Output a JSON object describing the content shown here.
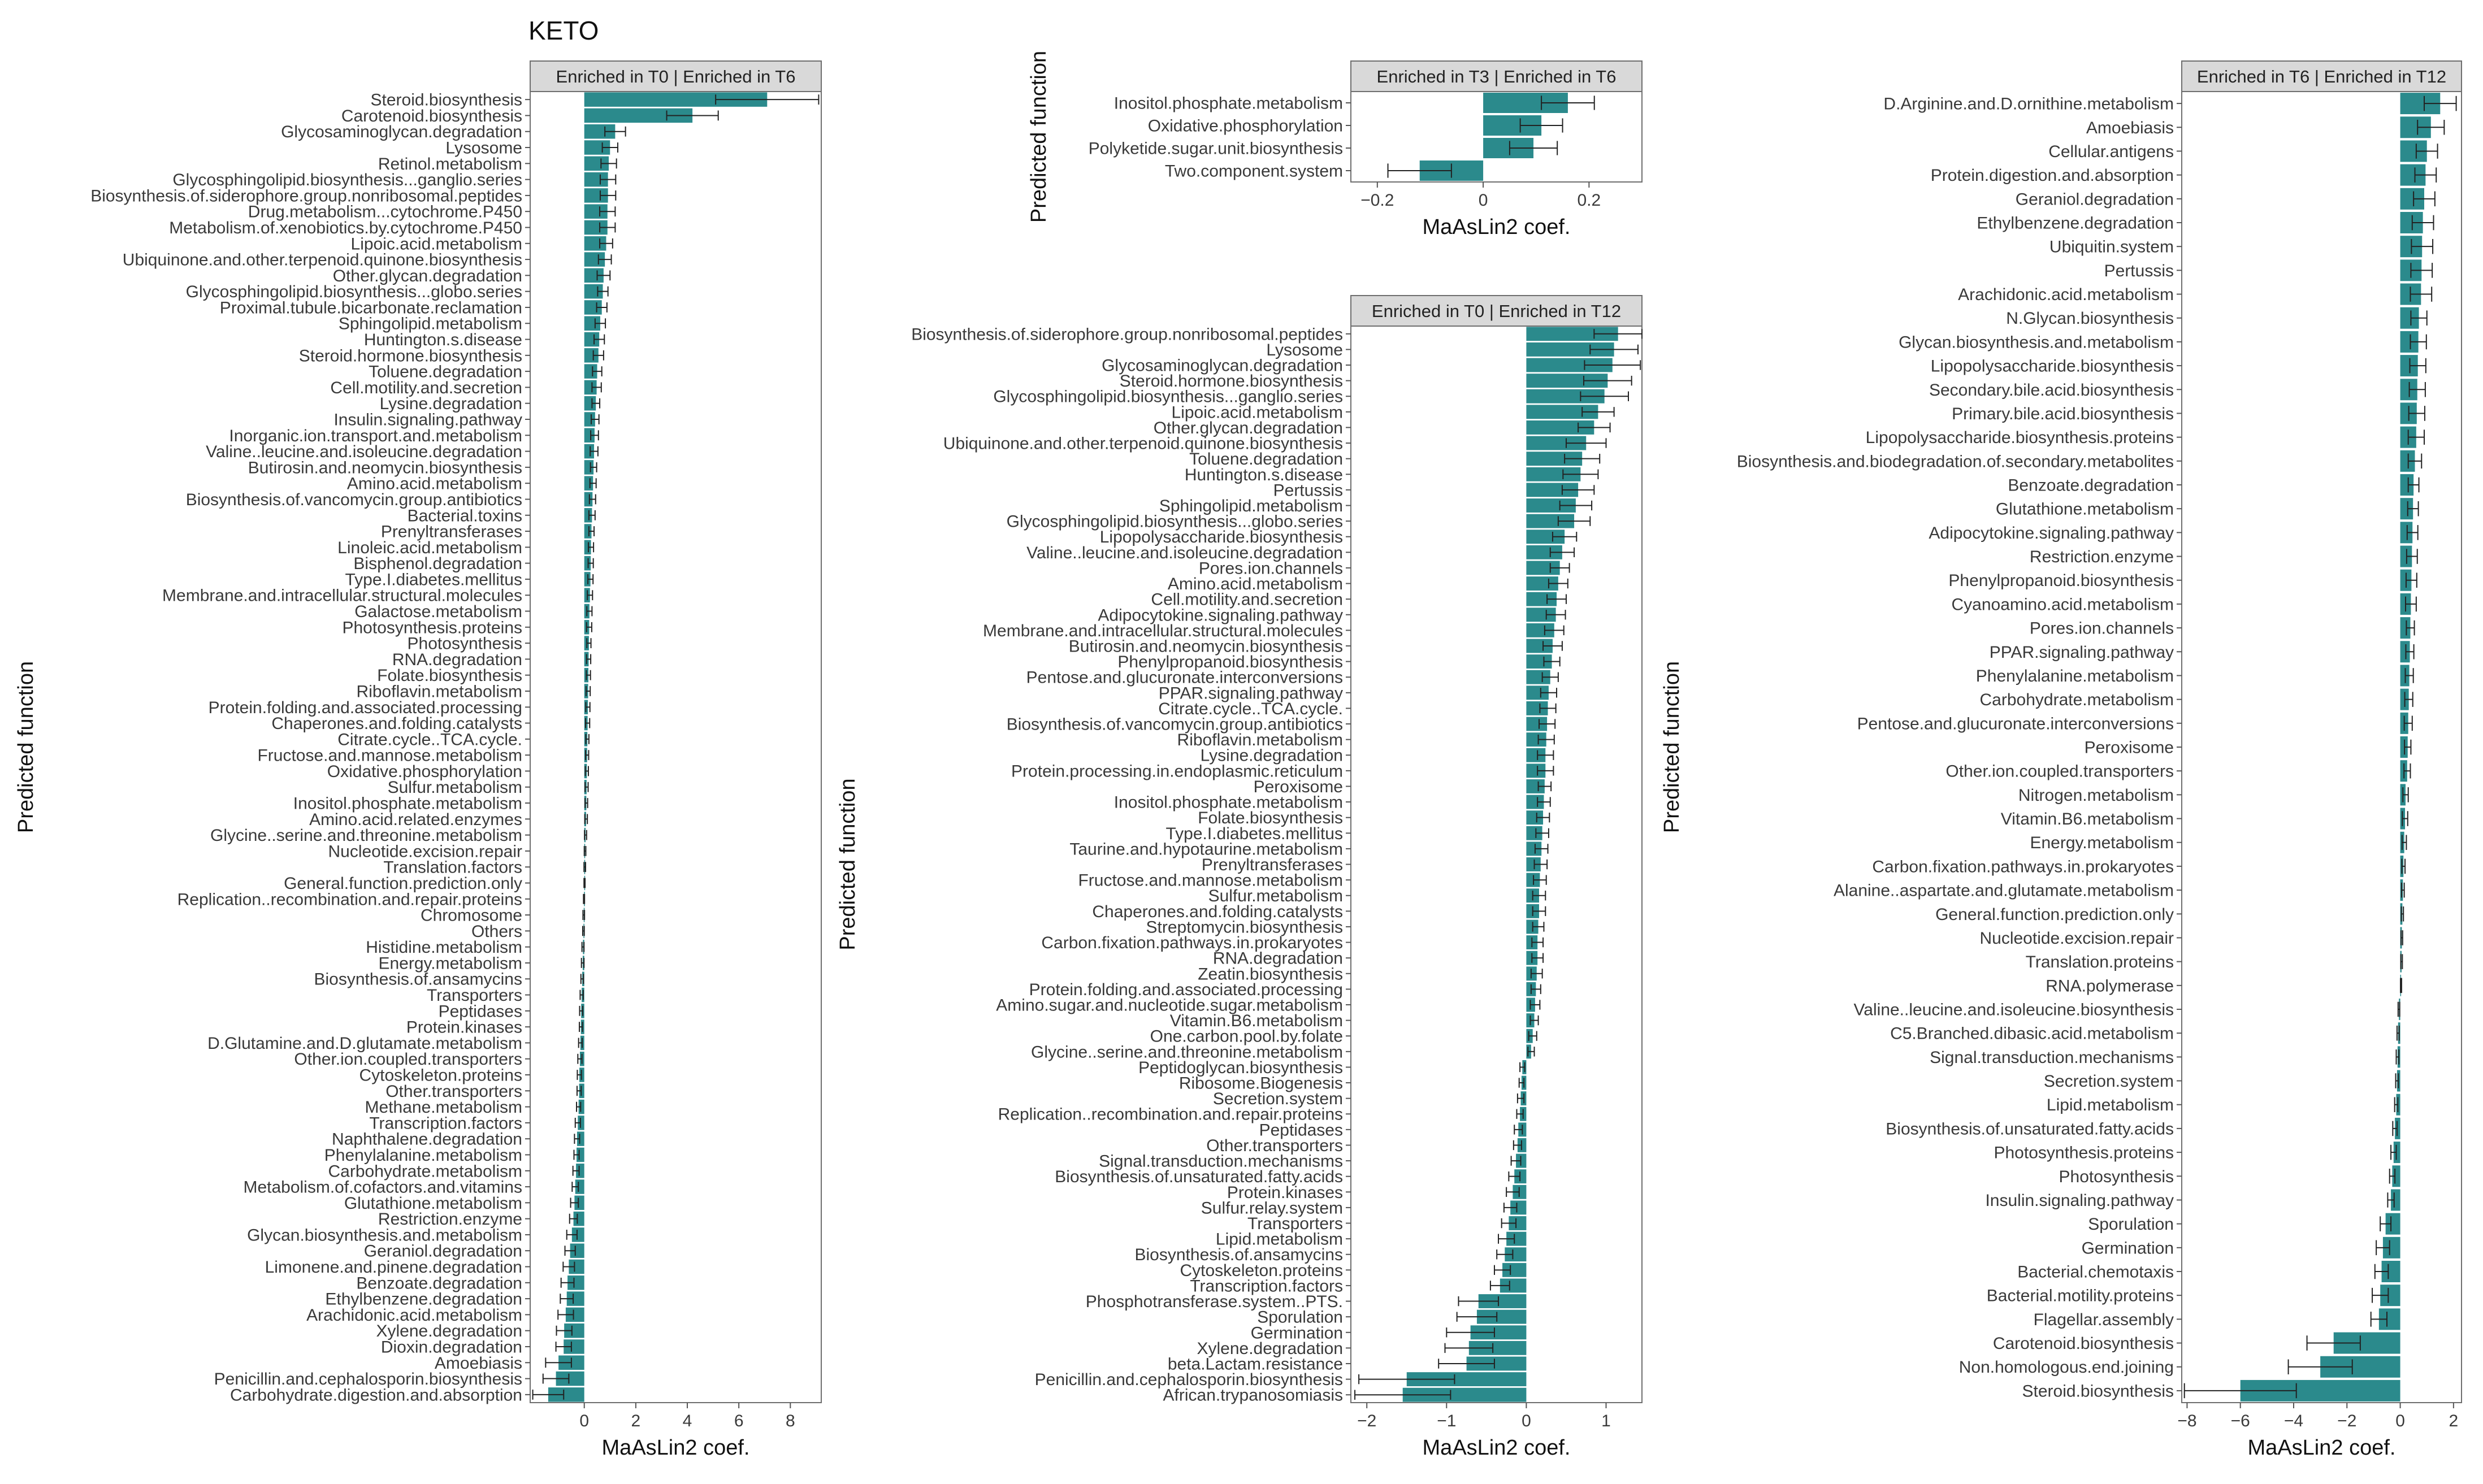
{
  "figure_title": "KETO",
  "colors": {
    "bar": "#2b8a8c",
    "axis": "#555555",
    "strip_fill": "#d9d9d9",
    "panel_border": "#6e6e6e"
  },
  "chart_data": [
    {
      "type": "bar",
      "orientation": "horizontal",
      "strip": "Enriched in T0 | Enriched in T6",
      "xlabel": "MaAsLin2 coef.",
      "ylabel": "Predicted function",
      "xlim": [
        -2.1,
        9.2
      ],
      "xticks": [
        0,
        2,
        4,
        6,
        8
      ],
      "categories": [
        "Steroid.biosynthesis",
        "Carotenoid.biosynthesis",
        "Glycosaminoglycan.degradation",
        "Lysosome",
        "Retinol.metabolism",
        "Glycosphingolipid.biosynthesis...ganglio.series",
        "Biosynthesis.of.siderophore.group.nonribosomal.peptides",
        "Drug.metabolism...cytochrome.P450",
        "Metabolism.of.xenobiotics.by.cytochrome.P450",
        "Lipoic.acid.metabolism",
        "Ubiquinone.and.other.terpenoid.quinone.biosynthesis",
        "Other.glycan.degradation",
        "Glycosphingolipid.biosynthesis...globo.series",
        "Proximal.tubule.bicarbonate.reclamation",
        "Sphingolipid.metabolism",
        "Huntington.s.disease",
        "Steroid.hormone.biosynthesis",
        "Toluene.degradation",
        "Cell.motility.and.secretion",
        "Lysine.degradation",
        "Insulin.signaling.pathway",
        "Inorganic.ion.transport.and.metabolism",
        "Valine..leucine.and.isoleucine.degradation",
        "Butirosin.and.neomycin.biosynthesis",
        "Amino.acid.metabolism",
        "Biosynthesis.of.vancomycin.group.antibiotics",
        "Bacterial.toxins",
        "Prenyltransferases",
        "Linoleic.acid.metabolism",
        "Bisphenol.degradation",
        "Type.I.diabetes.mellitus",
        "Membrane.and.intracellular.structural.molecules",
        "Galactose.metabolism",
        "Photosynthesis.proteins",
        "Photosynthesis",
        "RNA.degradation",
        "Folate.biosynthesis",
        "Riboflavin.metabolism",
        "Protein.folding.and.associated.processing",
        "Chaperones.and.folding.catalysts",
        "Citrate.cycle..TCA.cycle.",
        "Fructose.and.mannose.metabolism",
        "Oxidative.phosphorylation",
        "Sulfur.metabolism",
        "Inositol.phosphate.metabolism",
        "Amino.acid.related.enzymes",
        "Glycine..serine.and.threonine.metabolism",
        "Nucleotide.excision.repair",
        "Translation.factors",
        "General.function.prediction.only",
        "Replication..recombination.and.repair.proteins",
        "Chromosome",
        "Others",
        "Histidine.metabolism",
        "Energy.metabolism",
        "Biosynthesis.of.ansamycins",
        "Transporters",
        "Peptidases",
        "Protein.kinases",
        "D.Glutamine.and.D.glutamate.metabolism",
        "Other.ion.coupled.transporters",
        "Cytoskeleton.proteins",
        "Other.transporters",
        "Methane.metabolism",
        "Transcription.factors",
        "Naphthalene.degradation",
        "Phenylalanine.metabolism",
        "Carbohydrate.metabolism",
        "Metabolism.of.cofactors.and.vitamins",
        "Glutathione.metabolism",
        "Restriction.enzyme",
        "Glycan.biosynthesis.and.metabolism",
        "Geraniol.degradation",
        "Limonene.and.pinene.degradation",
        "Benzoate.degradation",
        "Ethylbenzene.degradation",
        "Arachidonic.acid.metabolism",
        "Xylene.degradation",
        "Dioxin.degradation",
        "Amoebiasis",
        "Penicillin.and.cephalosporin.biosynthesis",
        "Carbohydrate.digestion.and.absorption"
      ],
      "values": [
        7.1,
        4.2,
        1.2,
        1.0,
        0.95,
        0.92,
        0.92,
        0.9,
        0.9,
        0.85,
        0.8,
        0.75,
        0.72,
        0.68,
        0.62,
        0.58,
        0.55,
        0.5,
        0.48,
        0.45,
        0.42,
        0.4,
        0.38,
        0.36,
        0.34,
        0.32,
        0.3,
        0.28,
        0.26,
        0.25,
        0.24,
        0.22,
        0.2,
        0.19,
        0.18,
        0.17,
        0.16,
        0.15,
        0.14,
        0.13,
        0.12,
        0.11,
        0.1,
        0.09,
        0.08,
        0.07,
        0.05,
        0.03,
        0.02,
        0.01,
        -0.01,
        -0.02,
        -0.03,
        -0.05,
        -0.06,
        -0.08,
        -0.1,
        -0.12,
        -0.13,
        -0.15,
        -0.17,
        -0.19,
        -0.2,
        -0.22,
        -0.25,
        -0.28,
        -0.3,
        -0.32,
        -0.35,
        -0.38,
        -0.42,
        -0.48,
        -0.55,
        -0.6,
        -0.65,
        -0.68,
        -0.72,
        -0.78,
        -0.8,
        -1.0,
        -1.1,
        -1.4
      ],
      "errors": [
        2.0,
        1.0,
        0.4,
        0.3,
        0.3,
        0.3,
        0.3,
        0.3,
        0.3,
        0.25,
        0.25,
        0.25,
        0.2,
        0.2,
        0.2,
        0.2,
        0.2,
        0.18,
        0.18,
        0.15,
        0.15,
        0.15,
        0.15,
        0.12,
        0.12,
        0.12,
        0.12,
        0.1,
        0.1,
        0.1,
        0.1,
        0.1,
        0.1,
        0.1,
        0.08,
        0.08,
        0.08,
        0.08,
        0.08,
        0.08,
        0.06,
        0.06,
        0.06,
        0.06,
        0.05,
        0.05,
        0.04,
        0.03,
        0.03,
        0.02,
        0.02,
        0.03,
        0.03,
        0.04,
        0.05,
        0.05,
        0.06,
        0.06,
        0.06,
        0.07,
        0.08,
        0.08,
        0.08,
        0.08,
        0.1,
        0.1,
        0.1,
        0.12,
        0.12,
        0.15,
        0.15,
        0.2,
        0.2,
        0.22,
        0.25,
        0.25,
        0.3,
        0.3,
        0.3,
        0.5,
        0.5,
        0.6
      ]
    },
    {
      "type": "bar",
      "orientation": "horizontal",
      "strip": "Enriched in T3 | Enriched in T6",
      "xlabel": "MaAsLin2 coef.",
      "ylabel": "Predicted function",
      "xlim": [
        -0.25,
        0.3
      ],
      "xticks": [
        -0.2,
        0.0,
        0.2
      ],
      "categories": [
        "Inositol.phosphate.metabolism",
        "Oxidative.phosphorylation",
        "Polyketide.sugar.unit.biosynthesis",
        "Two.component.system"
      ],
      "values": [
        0.16,
        0.11,
        0.095,
        -0.12
      ],
      "errors": [
        0.05,
        0.04,
        0.045,
        0.06
      ]
    },
    {
      "type": "bar",
      "orientation": "horizontal",
      "strip": "Enriched in T0 | Enriched in T12",
      "xlabel": "MaAsLin2 coef.",
      "ylabel": "Predicted function",
      "xlim": [
        -2.2,
        1.45
      ],
      "xticks": [
        -2,
        -1,
        0,
        1
      ],
      "categories": [
        "Biosynthesis.of.siderophore.group.nonribosomal.peptides",
        "Lysosome",
        "Glycosaminoglycan.degradation",
        "Steroid.hormone.biosynthesis",
        "Glycosphingolipid.biosynthesis...ganglio.series",
        "Lipoic.acid.metabolism",
        "Other.glycan.degradation",
        "Ubiquinone.and.other.terpenoid.quinone.biosynthesis",
        "Toluene.degradation",
        "Huntington.s.disease",
        "Pertussis",
        "Sphingolipid.metabolism",
        "Glycosphingolipid.biosynthesis...globo.series",
        "Lipopolysaccharide.biosynthesis",
        "Valine..leucine.and.isoleucine.degradation",
        "Pores.ion.channels",
        "Amino.acid.metabolism",
        "Cell.motility.and.secretion",
        "Adipocytokine.signaling.pathway",
        "Membrane.and.intracellular.structural.molecules",
        "Butirosin.and.neomycin.biosynthesis",
        "Phenylpropanoid.biosynthesis",
        "Pentose.and.glucuronate.interconversions",
        "PPAR.signaling.pathway",
        "Citrate.cycle..TCA.cycle.",
        "Biosynthesis.of.vancomycin.group.antibiotics",
        "Riboflavin.metabolism",
        "Lysine.degradation",
        "Protein.processing.in.endoplasmic.reticulum",
        "Peroxisome",
        "Inositol.phosphate.metabolism",
        "Folate.biosynthesis",
        "Type.I.diabetes.mellitus",
        "Taurine.and.hypotaurine.metabolism",
        "Prenyltransferases",
        "Fructose.and.mannose.metabolism",
        "Sulfur.metabolism",
        "Chaperones.and.folding.catalysts",
        "Streptomycin.biosynthesis",
        "Carbon.fixation.pathways.in.prokaryotes",
        "RNA.degradation",
        "Zeatin.biosynthesis",
        "Protein.folding.and.associated.processing",
        "Amino.sugar.and.nucleotide.sugar.metabolism",
        "Vitamin.B6.metabolism",
        "One.carbon.pool.by.folate",
        "Glycine..serine.and.threonine.metabolism",
        "Peptidoglycan.biosynthesis",
        "Ribosome.Biogenesis",
        "Secretion.system",
        "Replication..recombination.and.repair.proteins",
        "Peptidases",
        "Other.transporters",
        "Signal.transduction.mechanisms",
        "Biosynthesis.of.unsaturated.fatty.acids",
        "Protein.kinases",
        "Sulfur.relay.system",
        "Transporters",
        "Lipid.metabolism",
        "Biosynthesis.of.ansamycins",
        "Cytoskeleton.proteins",
        "Transcription.factors",
        "Phosphotransferase.system..PTS.",
        "Sporulation",
        "Germination",
        "Xylene.degradation",
        "beta.Lactam.resistance",
        "Penicillin.and.cephalosporin.biosynthesis",
        "African.trypanosomiasis"
      ],
      "values": [
        1.15,
        1.1,
        1.08,
        1.02,
        0.98,
        0.9,
        0.85,
        0.75,
        0.7,
        0.68,
        0.65,
        0.62,
        0.6,
        0.48,
        0.45,
        0.42,
        0.4,
        0.38,
        0.37,
        0.35,
        0.33,
        0.32,
        0.3,
        0.28,
        0.27,
        0.26,
        0.25,
        0.24,
        0.24,
        0.23,
        0.22,
        0.21,
        0.2,
        0.19,
        0.18,
        0.17,
        0.16,
        0.16,
        0.15,
        0.14,
        0.14,
        0.13,
        0.12,
        0.11,
        0.1,
        0.08,
        0.06,
        -0.05,
        -0.06,
        -0.07,
        -0.08,
        -0.1,
        -0.11,
        -0.13,
        -0.15,
        -0.17,
        -0.2,
        -0.22,
        -0.25,
        -0.27,
        -0.3,
        -0.33,
        -0.6,
        -0.62,
        -0.7,
        -0.72,
        -0.75,
        -1.5,
        -1.55
      ],
      "errors": [
        0.3,
        0.3,
        0.35,
        0.3,
        0.3,
        0.2,
        0.2,
        0.25,
        0.22,
        0.22,
        0.2,
        0.2,
        0.2,
        0.15,
        0.15,
        0.12,
        0.12,
        0.12,
        0.12,
        0.12,
        0.12,
        0.1,
        0.1,
        0.1,
        0.1,
        0.1,
        0.1,
        0.1,
        0.1,
        0.08,
        0.08,
        0.08,
        0.08,
        0.08,
        0.08,
        0.08,
        0.08,
        0.08,
        0.07,
        0.07,
        0.07,
        0.07,
        0.06,
        0.06,
        0.05,
        0.05,
        0.04,
        0.03,
        0.03,
        0.04,
        0.04,
        0.05,
        0.05,
        0.06,
        0.07,
        0.08,
        0.08,
        0.09,
        0.1,
        0.1,
        0.1,
        0.12,
        0.25,
        0.25,
        0.3,
        0.3,
        0.35,
        0.6,
        0.6
      ]
    },
    {
      "type": "bar",
      "orientation": "horizontal",
      "strip": "Enriched in T6 | Enriched in T12",
      "xlabel": "MaAsLin2 coef.",
      "ylabel": "Predicted function",
      "xlim": [
        -8.2,
        2.3
      ],
      "xticks": [
        -8,
        -6,
        -4,
        -2,
        0,
        2
      ],
      "categories": [
        "D.Arginine.and.D.ornithine.metabolism",
        "Amoebiasis",
        "Cellular.antigens",
        "Protein.digestion.and.absorption",
        "Geraniol.degradation",
        "Ethylbenzene.degradation",
        "Ubiquitin.system",
        "Pertussis",
        "Arachidonic.acid.metabolism",
        "N.Glycan.biosynthesis",
        "Glycan.biosynthesis.and.metabolism",
        "Lipopolysaccharide.biosynthesis",
        "Secondary.bile.acid.biosynthesis",
        "Primary.bile.acid.biosynthesis",
        "Lipopolysaccharide.biosynthesis.proteins",
        "Biosynthesis.and.biodegradation.of.secondary.metabolites",
        "Benzoate.degradation",
        "Glutathione.metabolism",
        "Adipocytokine.signaling.pathway",
        "Restriction.enzyme",
        "Phenylpropanoid.biosynthesis",
        "Cyanoamino.acid.metabolism",
        "Pores.ion.channels",
        "PPAR.signaling.pathway",
        "Phenylalanine.metabolism",
        "Carbohydrate.metabolism",
        "Pentose.and.glucuronate.interconversions",
        "Peroxisome",
        "Other.ion.coupled.transporters",
        "Nitrogen.metabolism",
        "Vitamin.B6.metabolism",
        "Energy.metabolism",
        "Carbon.fixation.pathways.in.prokaryotes",
        "Alanine..aspartate.and.glutamate.metabolism",
        "General.function.prediction.only",
        "Nucleotide.excision.repair",
        "Translation.proteins",
        "RNA.polymerase",
        "Valine..leucine.and.isoleucine.biosynthesis",
        "C5.Branched.dibasic.acid.metabolism",
        "Signal.transduction.mechanisms",
        "Secretion.system",
        "Lipid.metabolism",
        "Biosynthesis.of.unsaturated.fatty.acids",
        "Photosynthesis.proteins",
        "Photosynthesis",
        "Insulin.signaling.pathway",
        "Sporulation",
        "Germination",
        "Bacterial.chemotaxis",
        "Bacterial.motility.proteins",
        "Flagellar.assembly",
        "Carotenoid.biosynthesis",
        "Non.homologous.end.joining",
        "Steroid.biosynthesis"
      ],
      "values": [
        1.5,
        1.15,
        1.0,
        0.95,
        0.9,
        0.85,
        0.82,
        0.8,
        0.78,
        0.7,
        0.68,
        0.66,
        0.64,
        0.62,
        0.6,
        0.55,
        0.5,
        0.48,
        0.46,
        0.44,
        0.42,
        0.4,
        0.38,
        0.36,
        0.34,
        0.32,
        0.3,
        0.28,
        0.26,
        0.2,
        0.18,
        0.15,
        0.12,
        0.1,
        0.08,
        0.06,
        0.05,
        0.03,
        -0.05,
        -0.08,
        -0.1,
        -0.12,
        -0.15,
        -0.2,
        -0.25,
        -0.3,
        -0.35,
        -0.55,
        -0.65,
        -0.7,
        -0.75,
        -0.8,
        -2.5,
        -3.0,
        -6.0
      ],
      "errors": [
        0.6,
        0.5,
        0.4,
        0.4,
        0.4,
        0.4,
        0.4,
        0.4,
        0.4,
        0.3,
        0.3,
        0.3,
        0.3,
        0.3,
        0.3,
        0.25,
        0.2,
        0.2,
        0.2,
        0.2,
        0.2,
        0.2,
        0.15,
        0.15,
        0.15,
        0.15,
        0.15,
        0.12,
        0.12,
        0.1,
        0.1,
        0.08,
        0.06,
        0.05,
        0.04,
        0.03,
        0.03,
        0.02,
        0.03,
        0.04,
        0.05,
        0.05,
        0.06,
        0.08,
        0.1,
        0.1,
        0.12,
        0.2,
        0.25,
        0.25,
        0.3,
        0.3,
        1.0,
        1.2,
        2.1
      ]
    }
  ]
}
